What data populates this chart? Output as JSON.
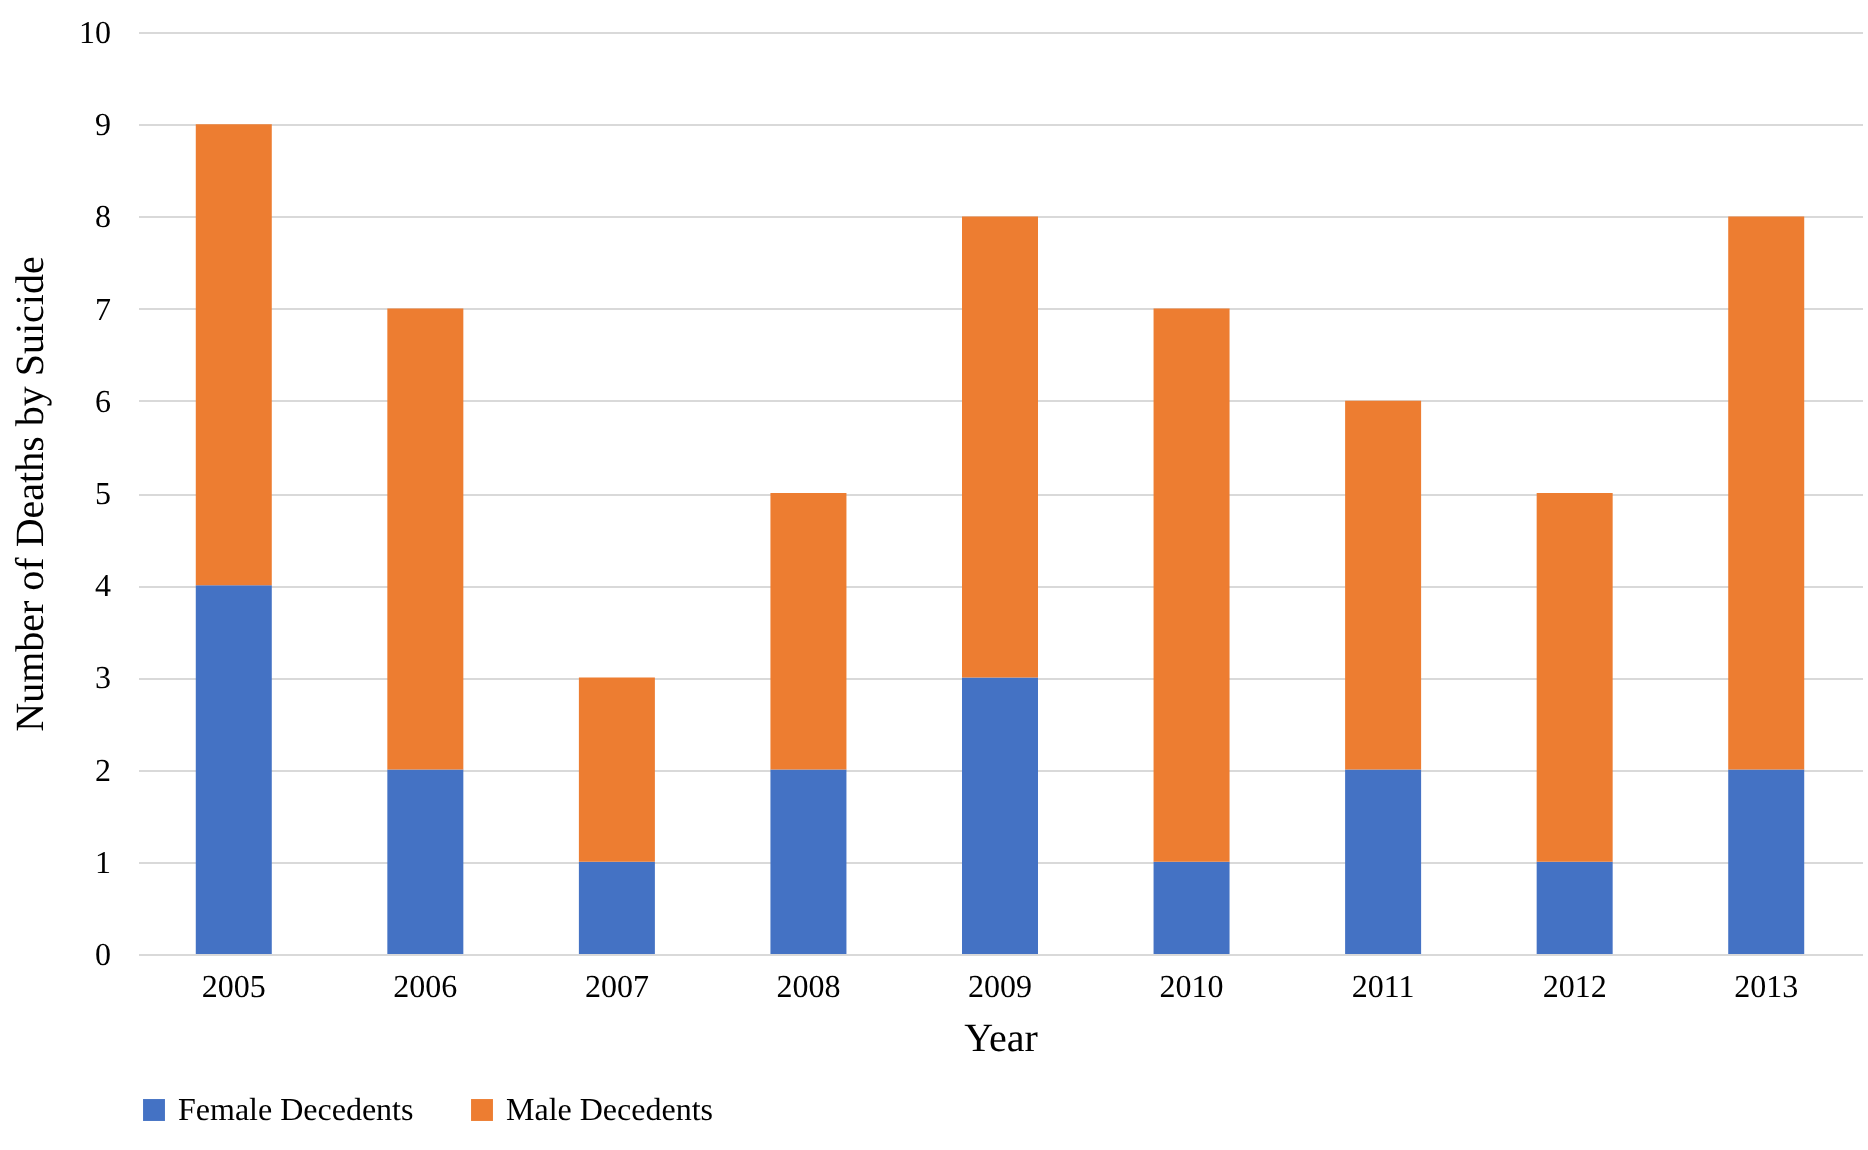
{
  "chart_data": {
    "type": "bar",
    "stacked": true,
    "xlabel": "Year",
    "ylabel": "Number of Deaths by Suicide",
    "categories": [
      "2005",
      "2006",
      "2007",
      "2008",
      "2009",
      "2010",
      "2011",
      "2012",
      "2013"
    ],
    "series": [
      {
        "name": "Female Decedents",
        "color": "#4472c4",
        "values": [
          4,
          2,
          1,
          2,
          3,
          1,
          2,
          1,
          2
        ]
      },
      {
        "name": "Male Decedents",
        "color": "#ed7d31",
        "values": [
          5,
          5,
          2,
          3,
          5,
          6,
          4,
          4,
          6
        ]
      }
    ],
    "ylim": [
      0,
      10
    ],
    "yticks": [
      0,
      1,
      2,
      3,
      4,
      5,
      6,
      7,
      8,
      9,
      10
    ],
    "grid": "y",
    "legend": "bottom"
  }
}
